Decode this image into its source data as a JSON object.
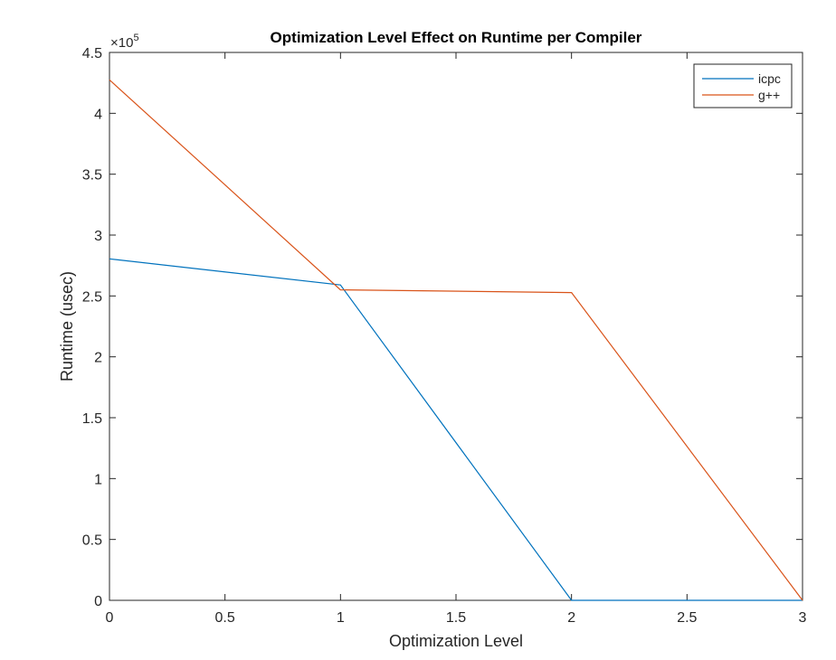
{
  "chart_data": {
    "type": "line",
    "title": "Optimization Level Effect on Runtime per Compiler",
    "xlabel": "Optimization Level",
    "ylabel": "Runtime (usec)",
    "xlim": [
      0,
      3
    ],
    "ylim": [
      0,
      450000
    ],
    "x_ticks": [
      "0",
      "0.5",
      "1",
      "1.5",
      "2",
      "2.5",
      "3"
    ],
    "y_ticks": [
      "0",
      "0.5",
      "1",
      "1.5",
      "2",
      "2.5",
      "3",
      "3.5",
      "4",
      "4.5"
    ],
    "y_exponent": {
      "prefix": "×10",
      "power": "5"
    },
    "grid": false,
    "legend_position": "top-right",
    "x": [
      0,
      1,
      2,
      3
    ],
    "series": [
      {
        "name": "icpc",
        "color": "#0072BD",
        "values": [
          280500,
          259000,
          0,
          0
        ]
      },
      {
        "name": "g++",
        "color": "#D95319",
        "values": [
          427500,
          255000,
          252800,
          0
        ]
      }
    ]
  }
}
